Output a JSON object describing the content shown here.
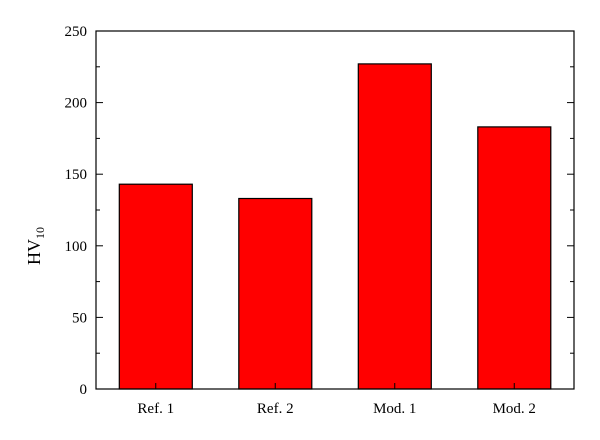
{
  "chart_data": {
    "type": "bar",
    "title": "",
    "xlabel": "",
    "ylabel": {
      "base": "HV",
      "subscript": "10"
    },
    "categories": [
      "Ref. 1",
      "Ref. 2",
      "Mod. 1",
      "Mod. 2"
    ],
    "values": [
      143,
      133,
      227,
      183
    ],
    "ylim": [
      0,
      250
    ],
    "yticks": [
      "0",
      "50",
      "100",
      "150",
      "200",
      "250"
    ],
    "grid": false,
    "legend": "none",
    "bar_color": "#ff0000",
    "bar_edge_color": "#000000"
  }
}
